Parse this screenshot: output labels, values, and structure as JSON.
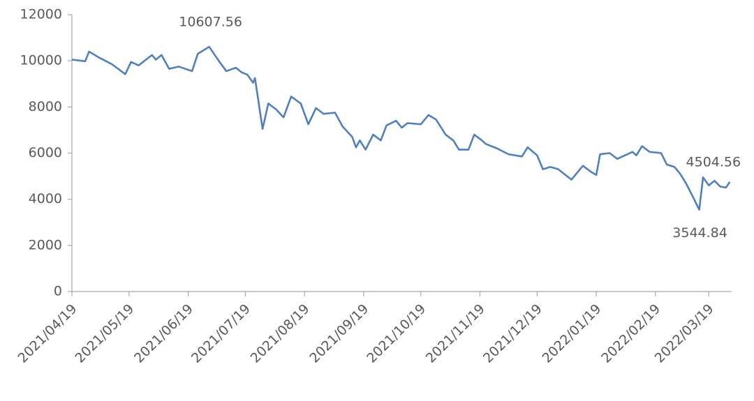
{
  "chart_data": {
    "type": "line",
    "color": "#4f7fbf",
    "x": [
      "2021/04/19",
      "2021/04/26",
      "2021/04/28",
      "2021/05/03",
      "2021/05/10",
      "2021/05/17",
      "2021/05/20",
      "2021/05/24",
      "2021/05/31",
      "2021/06/02",
      "2021/06/05",
      "2021/06/09",
      "2021/06/14",
      "2021/06/21",
      "2021/06/24",
      "2021/06/30",
      "2021/07/05",
      "2021/07/09",
      "2021/07/14",
      "2021/07/17",
      "2021/07/20",
      "2021/07/23",
      "2021/07/24",
      "2021/07/28",
      "2021/07/31",
      "2021/08/04",
      "2021/08/08",
      "2021/08/12",
      "2021/08/17",
      "2021/08/21",
      "2021/08/25",
      "2021/08/29",
      "2021/09/04",
      "2021/09/08",
      "2021/09/13",
      "2021/09/15",
      "2021/09/17",
      "2021/09/20",
      "2021/09/24",
      "2021/09/28",
      "2021/10/01",
      "2021/10/06",
      "2021/10/09",
      "2021/10/12",
      "2021/10/19",
      "2021/10/23",
      "2021/10/27",
      "2021/11/01",
      "2021/11/05",
      "2021/11/08",
      "2021/11/13",
      "2021/11/16",
      "2021/11/20",
      "2021/11/22",
      "2021/11/28",
      "2021/12/04",
      "2021/12/11",
      "2021/12/14",
      "2021/12/19",
      "2021/12/22",
      "2021/12/26",
      "2021/12/30",
      "2022/01/06",
      "2022/01/12",
      "2022/01/16",
      "2022/01/19",
      "2022/01/21",
      "2022/01/26",
      "2022/01/30",
      "2022/02/07",
      "2022/02/09",
      "2022/02/12",
      "2022/02/16",
      "2022/02/22",
      "2022/02/25",
      "2022/03/01",
      "2022/03/04",
      "2022/03/07",
      "2022/03/11",
      "2022/03/14",
      "2022/03/16",
      "2022/03/19",
      "2022/03/22",
      "2022/03/25",
      "2022/03/28",
      "2022/03/30"
    ],
    "values": [
      10050,
      9980,
      10400,
      10150,
      9850,
      9420,
      9950,
      9800,
      10250,
      10050,
      10250,
      9650,
      9750,
      9550,
      10300,
      10607.56,
      10000,
      9550,
      9700,
      9500,
      9400,
      9050,
      9250,
      7050,
      8150,
      7900,
      7550,
      8450,
      8150,
      7250,
      7950,
      7700,
      7750,
      7150,
      6700,
      6250,
      6550,
      6150,
      6800,
      6550,
      7200,
      7400,
      7100,
      7300,
      7250,
      7650,
      7450,
      6800,
      6550,
      6150,
      6150,
      6800,
      6550,
      6400,
      6200,
      5950,
      5850,
      6250,
      5900,
      5300,
      5400,
      5300,
      4850,
      5450,
      5200,
      5050,
      5950,
      6000,
      5750,
      6050,
      5900,
      6300,
      6050,
      6000,
      5500,
      5400,
      5100,
      4700,
      4050,
      3544.84,
      4950,
      4600,
      4800,
      4550,
      4504.56,
      4750
    ],
    "xlim": [
      "2021/04/19",
      "2022/03/31"
    ],
    "xticks": [
      "2021/04/19",
      "2021/05/19",
      "2021/06/19",
      "2021/07/19",
      "2021/08/19",
      "2021/09/19",
      "2021/10/19",
      "2021/11/19",
      "2021/12/19",
      "2022/01/19",
      "2022/02/19",
      "2022/03/19"
    ],
    "ylim": [
      0,
      12000
    ],
    "yticks": [
      0,
      2000,
      4000,
      6000,
      8000,
      10000,
      12000
    ],
    "annotations": [
      {
        "x": "2021/06/30",
        "value": 10607.56
      },
      {
        "x": "2022/03/28",
        "value": 4504.56
      },
      {
        "x": "2022/03/14",
        "value": 3544.84
      }
    ]
  }
}
